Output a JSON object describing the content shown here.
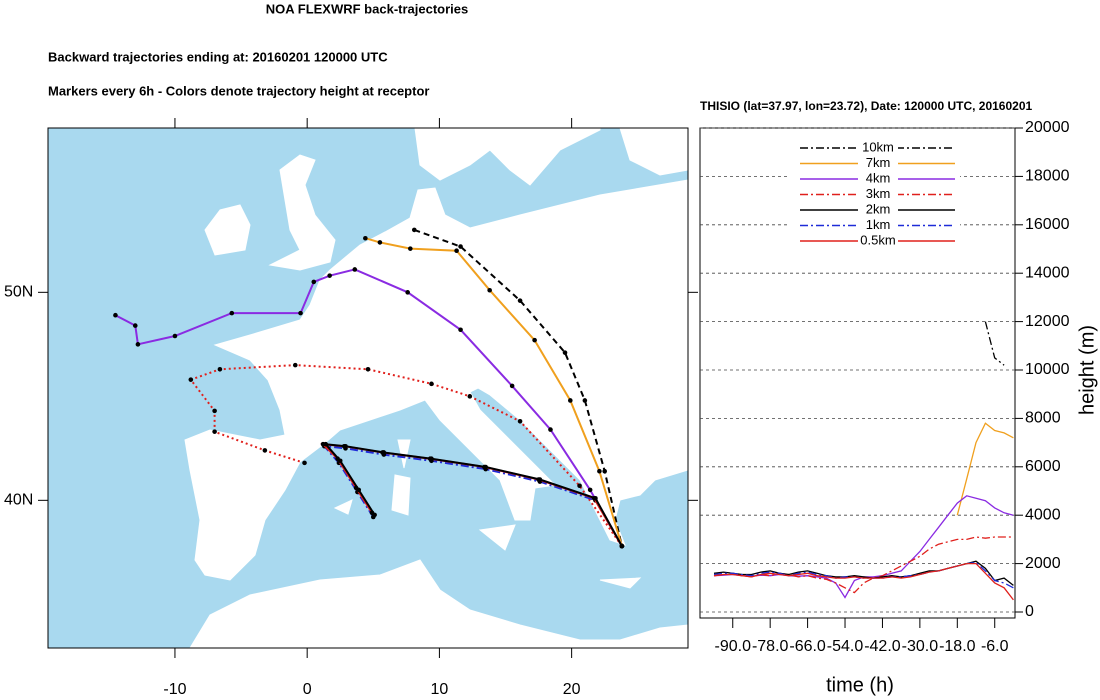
{
  "chart_data": [
    {
      "type": "trajectory_map",
      "title": "NOA FLEXWRF back-trajectories",
      "subtitle": "Backward trajectories ending at: 20160201  120000 UTC",
      "note": "Markers every 6h - Colors denote trajectory height at receptor",
      "xlim": [
        -19.6,
        28.8
      ],
      "ylim": [
        32.9,
        57.9
      ],
      "xticks": [
        -10,
        0,
        10,
        20
      ],
      "yticks": [
        {
          "value": 40,
          "label": "40N"
        },
        {
          "value": 50,
          "label": "50N"
        }
      ],
      "sea_color": "#a9d9ef",
      "land_color": "#ffffff",
      "series": [
        {
          "color": "#000000",
          "dash": "dashed",
          "x": [
            8.1,
            11.6,
            16.1,
            19.5,
            21.0,
            22.5,
            23.8
          ],
          "values": [
            53.0,
            52.2,
            49.6,
            47.1,
            44.8,
            41.4,
            37.8
          ]
        },
        {
          "color": "#f0a01e",
          "dash": "solid",
          "x": [
            4.4,
            5.5,
            7.8,
            11.3,
            13.8,
            17.2,
            19.9,
            22.1,
            23.8
          ],
          "values": [
            52.6,
            52.4,
            52.1,
            52.0,
            50.1,
            47.7,
            44.8,
            41.4,
            37.8
          ]
        },
        {
          "color": "#8a2be2",
          "dash": "solid",
          "x": [
            -14.5,
            -13.0,
            -12.8,
            -10.0,
            -5.7,
            -0.5,
            0.5,
            1.7,
            3.6,
            7.6,
            11.6,
            15.5,
            18.4,
            21.4,
            23.8
          ],
          "values": [
            48.9,
            48.4,
            47.5,
            47.9,
            49.0,
            49.0,
            50.5,
            50.8,
            51.1,
            50.0,
            48.2,
            45.5,
            43.4,
            40.5,
            37.8
          ]
        },
        {
          "color": "#e0201c",
          "dash": "dotted",
          "x": [
            -0.2,
            -3.2,
            -7.0,
            -7.0,
            -8.8,
            -6.6,
            -0.9,
            4.6,
            9.4,
            12.3,
            16.1,
            20.6,
            23.8
          ],
          "values": [
            41.8,
            42.4,
            43.3,
            44.3,
            45.8,
            46.3,
            46.5,
            46.3,
            45.6,
            45.0,
            43.8,
            40.7,
            37.8
          ]
        },
        {
          "color": "#1e2bd8",
          "dash": "dashdot",
          "x": [
            5.0,
            3.8,
            2.4,
            1.3,
            2.9,
            5.8,
            9.4,
            13.5,
            17.6,
            21.8,
            23.8
          ],
          "values": [
            39.2,
            40.4,
            41.8,
            42.6,
            42.5,
            42.2,
            41.9,
            41.5,
            40.9,
            40.0,
            37.8
          ]
        },
        {
          "color": "#e0201c",
          "dash": "solid",
          "x": [
            4.9,
            3.7,
            2.3,
            1.2,
            2.8,
            5.7,
            9.3,
            13.4,
            17.5,
            21.7,
            23.8
          ],
          "values": [
            39.4,
            40.6,
            42.0,
            42.7,
            42.6,
            42.3,
            42.0,
            41.6,
            41.0,
            40.1,
            37.8
          ]
        },
        {
          "color": "#000000",
          "dash": "solid",
          "x": [
            5.1,
            3.9,
            2.5,
            1.4,
            2.9,
            5.8,
            9.4,
            13.5,
            17.6,
            21.8,
            23.8
          ],
          "values": [
            39.3,
            40.5,
            41.9,
            42.7,
            42.6,
            42.3,
            42.0,
            41.6,
            41.0,
            40.1,
            37.8
          ]
        }
      ]
    },
    {
      "type": "line",
      "title": "THISIO (lat=37.97,  lon=23.72), Date: 120000 UTC, 20160201",
      "x_label": "time (h)",
      "y_label": "height (m)",
      "xlim": [
        -100.5,
        0.5
      ],
      "ylim": [
        0,
        20000
      ],
      "xticks": [
        {
          "value": -90,
          "label": "-90.0"
        },
        {
          "value": -78,
          "label": "-78.0"
        },
        {
          "value": -66,
          "label": "-66.0"
        },
        {
          "value": -54,
          "label": "-54.0"
        },
        {
          "value": -42,
          "label": "-42.0"
        },
        {
          "value": -30,
          "label": "-30.0"
        },
        {
          "value": -18,
          "label": "-18.0"
        },
        {
          "value": -6,
          "label": "-6.0"
        }
      ],
      "yticks": [
        0,
        2000,
        4000,
        6000,
        8000,
        10000,
        12000,
        14000,
        16000,
        18000,
        20000
      ],
      "grid": true,
      "legend": "top",
      "x": [
        -96,
        -93,
        -90,
        -87,
        -84,
        -81,
        -78,
        -75,
        -72,
        -69,
        -66,
        -63,
        -60,
        -57,
        -54,
        -51,
        -48,
        -45,
        -42,
        -39,
        -36,
        -33,
        -30,
        -27,
        -24,
        -21,
        -18,
        -15,
        -12,
        -9,
        -6,
        -3,
        0
      ],
      "series": [
        {
          "name": "10km",
          "color": "#000000",
          "dash": "dashdot",
          "values": [
            null,
            null,
            null,
            null,
            null,
            null,
            null,
            null,
            null,
            null,
            null,
            null,
            null,
            null,
            null,
            null,
            null,
            null,
            null,
            null,
            null,
            null,
            null,
            null,
            null,
            null,
            null,
            null,
            null,
            12000,
            10500,
            10200,
            null
          ]
        },
        {
          "name": "7km",
          "color": "#f0a01e",
          "dash": "solid",
          "values": [
            null,
            null,
            null,
            null,
            null,
            null,
            null,
            null,
            null,
            null,
            null,
            null,
            null,
            null,
            null,
            null,
            null,
            null,
            null,
            null,
            null,
            null,
            null,
            null,
            null,
            null,
            4000,
            5500,
            7000,
            7800,
            7500,
            7400,
            7200
          ]
        },
        {
          "name": "4km",
          "color": "#8a2be2",
          "dash": "solid",
          "values": [
            1500,
            1520,
            1550,
            1500,
            1480,
            1520,
            1500,
            1550,
            1500,
            1480,
            1500,
            1450,
            1400,
            1200,
            600,
            1300,
            1450,
            1450,
            1500,
            1600,
            1700,
            2100,
            2500,
            3000,
            3500,
            4000,
            4500,
            4800,
            4700,
            4600,
            4300,
            4100,
            4000
          ]
        },
        {
          "name": "3km",
          "color": "#e0201c",
          "dash": "dashdot",
          "values": [
            1500,
            1550,
            1600,
            1500,
            1450,
            1550,
            1500,
            1600,
            1550,
            1450,
            1500,
            1400,
            1350,
            1200,
            1000,
            800,
            1200,
            1400,
            1500,
            1700,
            1900,
            2100,
            2300,
            2600,
            2800,
            2900,
            3000,
            3000,
            3100,
            3050,
            3100,
            3100,
            3100
          ]
        },
        {
          "name": "2km",
          "color": "#000000",
          "dash": "solid",
          "values": [
            1600,
            1650,
            1600,
            1550,
            1550,
            1650,
            1700,
            1600,
            1550,
            1650,
            1700,
            1600,
            1500,
            1450,
            1450,
            1500,
            1450,
            1400,
            1450,
            1500,
            1450,
            1500,
            1600,
            1700,
            1700,
            1800,
            1900,
            2000,
            2100,
            1800,
            1300,
            1400,
            1100
          ]
        },
        {
          "name": "1km",
          "color": "#1e2bd8",
          "dash": "dashdot",
          "values": [
            1550,
            1600,
            1600,
            1550,
            1500,
            1600,
            1650,
            1600,
            1500,
            1600,
            1650,
            1550,
            1500,
            1400,
            1450,
            1450,
            1400,
            1400,
            1400,
            1450,
            1450,
            1500,
            1550,
            1650,
            1700,
            1800,
            1900,
            2000,
            2050,
            1700,
            1300,
            1200,
            1000
          ]
        },
        {
          "name": "0.5km",
          "color": "#e0201c",
          "dash": "solid",
          "values": [
            1500,
            1550,
            1550,
            1500,
            1450,
            1550,
            1600,
            1550,
            1500,
            1550,
            1600,
            1500,
            1450,
            1400,
            1400,
            1450,
            1400,
            1400,
            1400,
            1450,
            1400,
            1450,
            1550,
            1650,
            1700,
            1800,
            1900,
            2000,
            2000,
            1600,
            1200,
            1000,
            500
          ]
        }
      ]
    }
  ]
}
